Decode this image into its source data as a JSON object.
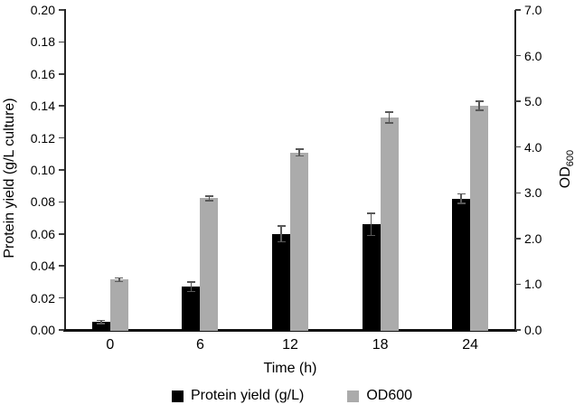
{
  "chart_data": {
    "type": "bar",
    "title": "",
    "categories": [
      "0",
      "6",
      "12",
      "18",
      "24"
    ],
    "xlabel": "Time (h)",
    "grid": false,
    "legend_position": "bottom",
    "left_axis": {
      "label": "Protein yield (g/L culture)",
      "min": 0.0,
      "max": 0.2,
      "step": 0.02,
      "ticks": [
        "0.00",
        "0.02",
        "0.04",
        "0.06",
        "0.08",
        "0.10",
        "0.12",
        "0.14",
        "0.16",
        "0.18",
        "0.20"
      ]
    },
    "right_axis": {
      "label_base": "OD",
      "label_sub": "600",
      "min": 0.0,
      "max": 7.0,
      "step": 1.0,
      "ticks": [
        "0.0",
        "1.0",
        "2.0",
        "3.0",
        "4.0",
        "5.0",
        "6.0",
        "7.0"
      ]
    },
    "series": [
      {
        "name": "Protein yield (g/L)",
        "axis": "left",
        "color": "#000000",
        "values": [
          0.005,
          0.027,
          0.06,
          0.066,
          0.082
        ],
        "errors": [
          0.001,
          0.003,
          0.005,
          0.007,
          0.003
        ]
      },
      {
        "name": "OD600",
        "axis": "right",
        "color": "#ABABAB",
        "values": [
          1.1,
          2.88,
          3.88,
          4.65,
          4.9
        ],
        "errors": [
          0.04,
          0.05,
          0.07,
          0.12,
          0.1
        ]
      }
    ],
    "error_bar_color": "#595959"
  }
}
